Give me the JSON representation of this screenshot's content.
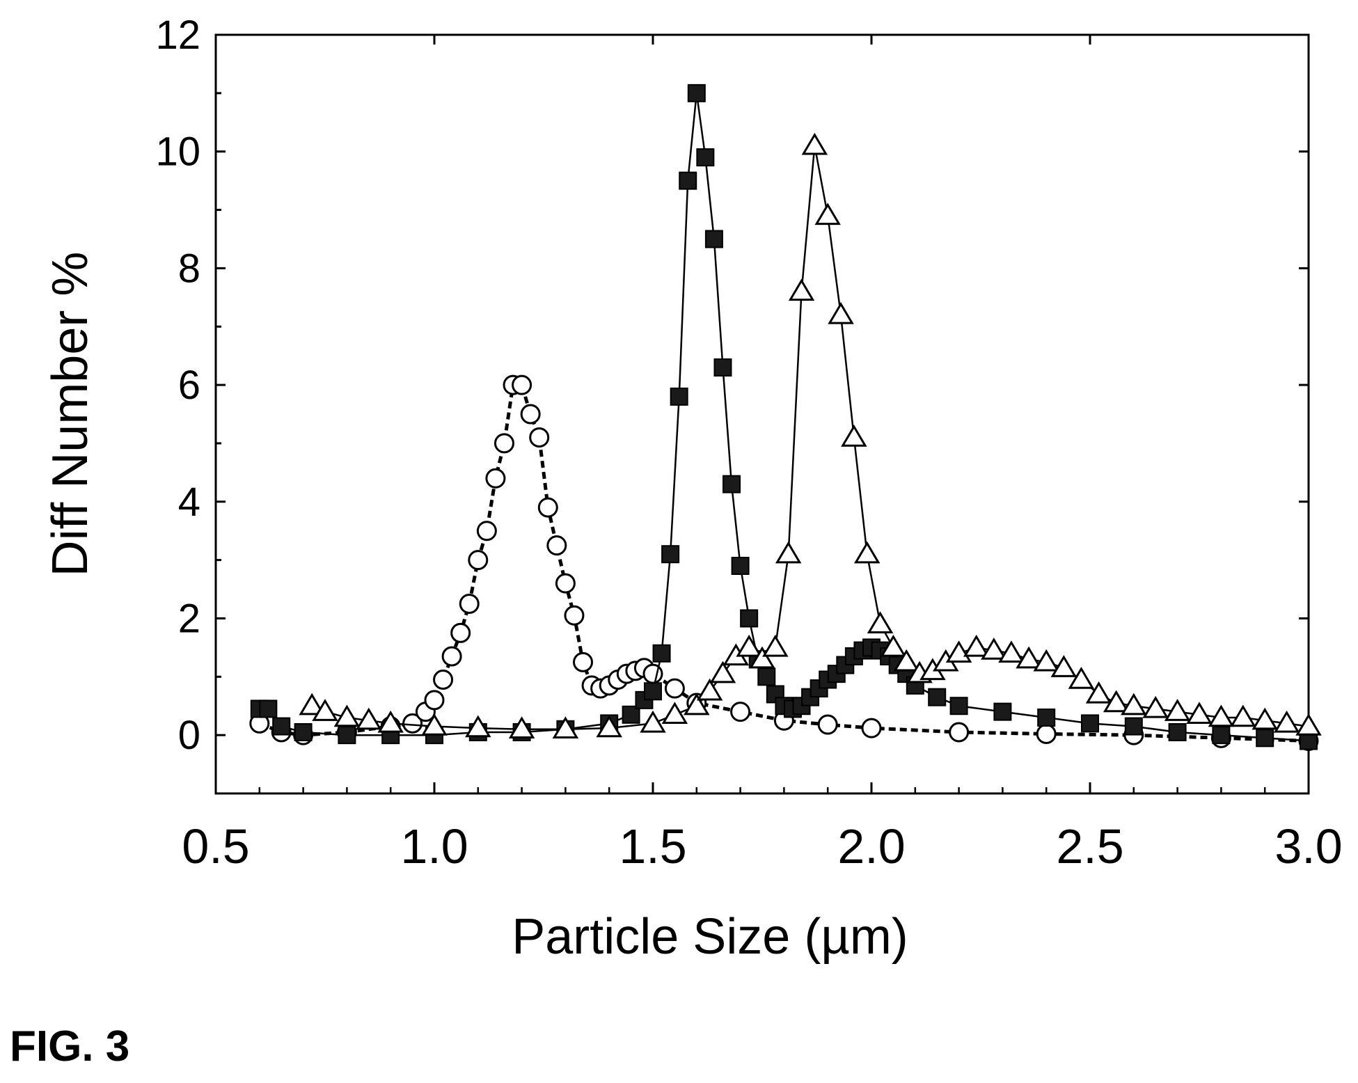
{
  "figure_caption": "FIG. 3",
  "chart_data": {
    "type": "scatter",
    "xlabel": "Particle Size (µm)",
    "ylabel": "Diff Number %",
    "xlim": [
      0.5,
      3.0
    ],
    "ylim": [
      -1,
      12
    ],
    "x_ticks": [
      "0.5",
      "1.0",
      "1.5",
      "2.0",
      "2.5",
      "3.0"
    ],
    "y_ticks": [
      "0",
      "2",
      "4",
      "6",
      "8",
      "10",
      "12"
    ],
    "grid": false,
    "legend": "none",
    "series": [
      {
        "marker": "circle-open",
        "color": "#000000",
        "x": [
          0.6,
          0.65,
          0.7,
          0.8,
          0.9,
          0.95,
          0.98,
          1.0,
          1.02,
          1.04,
          1.06,
          1.08,
          1.1,
          1.12,
          1.14,
          1.16,
          1.18,
          1.2,
          1.22,
          1.24,
          1.26,
          1.28,
          1.3,
          1.32,
          1.34,
          1.36,
          1.38,
          1.4,
          1.42,
          1.44,
          1.46,
          1.48,
          1.5,
          1.55,
          1.6,
          1.7,
          1.8,
          1.9,
          2.0,
          2.2,
          2.4,
          2.6,
          2.8,
          3.0
        ],
        "y": [
          0.2,
          0.05,
          0.0,
          0.05,
          0.15,
          0.2,
          0.4,
          0.6,
          0.95,
          1.35,
          1.75,
          2.25,
          3.0,
          3.5,
          4.4,
          5.0,
          6.0,
          6.0,
          5.5,
          5.1,
          3.9,
          3.25,
          2.6,
          2.05,
          1.25,
          0.85,
          0.8,
          0.85,
          0.95,
          1.05,
          1.1,
          1.15,
          1.05,
          0.8,
          0.55,
          0.4,
          0.25,
          0.18,
          0.12,
          0.05,
          0.02,
          0.0,
          -0.05,
          -0.1
        ]
      },
      {
        "marker": "square-filled",
        "color": "#000000",
        "x": [
          0.6,
          0.62,
          0.65,
          0.7,
          0.8,
          0.9,
          1.0,
          1.1,
          1.2,
          1.3,
          1.4,
          1.45,
          1.48,
          1.5,
          1.52,
          1.54,
          1.56,
          1.58,
          1.6,
          1.62,
          1.64,
          1.66,
          1.68,
          1.7,
          1.72,
          1.74,
          1.76,
          1.78,
          1.8,
          1.82,
          1.84,
          1.86,
          1.88,
          1.9,
          1.92,
          1.94,
          1.96,
          1.98,
          2.0,
          2.02,
          2.04,
          2.06,
          2.08,
          2.1,
          2.15,
          2.2,
          2.3,
          2.4,
          2.5,
          2.6,
          2.7,
          2.8,
          2.9,
          3.0
        ],
        "y": [
          0.45,
          0.45,
          0.15,
          0.05,
          0.0,
          0.0,
          0.0,
          0.05,
          0.05,
          0.1,
          0.2,
          0.35,
          0.6,
          0.75,
          1.4,
          3.1,
          5.8,
          9.5,
          11.0,
          9.9,
          8.5,
          6.3,
          4.3,
          2.9,
          2.0,
          1.3,
          1.0,
          0.7,
          0.5,
          0.45,
          0.5,
          0.65,
          0.8,
          0.95,
          1.05,
          1.2,
          1.35,
          1.45,
          1.5,
          1.45,
          1.35,
          1.2,
          1.05,
          0.85,
          0.65,
          0.5,
          0.4,
          0.3,
          0.2,
          0.15,
          0.05,
          0.0,
          -0.05,
          -0.1
        ]
      },
      {
        "marker": "triangle-open",
        "color": "#000000",
        "x": [
          0.72,
          0.75,
          0.8,
          0.85,
          0.9,
          1.0,
          1.1,
          1.2,
          1.3,
          1.4,
          1.5,
          1.55,
          1.6,
          1.63,
          1.66,
          1.69,
          1.72,
          1.75,
          1.78,
          1.81,
          1.84,
          1.87,
          1.9,
          1.93,
          1.96,
          1.99,
          2.02,
          2.05,
          2.08,
          2.11,
          2.14,
          2.17,
          2.2,
          2.24,
          2.28,
          2.32,
          2.36,
          2.4,
          2.44,
          2.48,
          2.52,
          2.56,
          2.6,
          2.65,
          2.7,
          2.75,
          2.8,
          2.85,
          2.9,
          2.95,
          3.0
        ],
        "y": [
          0.5,
          0.4,
          0.3,
          0.25,
          0.2,
          0.15,
          0.12,
          0.1,
          0.1,
          0.12,
          0.2,
          0.35,
          0.5,
          0.75,
          1.05,
          1.35,
          1.5,
          1.3,
          1.5,
          3.1,
          7.6,
          10.1,
          8.9,
          7.2,
          5.1,
          3.1,
          1.9,
          1.5,
          1.25,
          1.05,
          1.1,
          1.25,
          1.4,
          1.5,
          1.45,
          1.4,
          1.3,
          1.25,
          1.15,
          0.95,
          0.7,
          0.55,
          0.5,
          0.45,
          0.4,
          0.35,
          0.3,
          0.3,
          0.25,
          0.2,
          0.15
        ]
      }
    ]
  }
}
